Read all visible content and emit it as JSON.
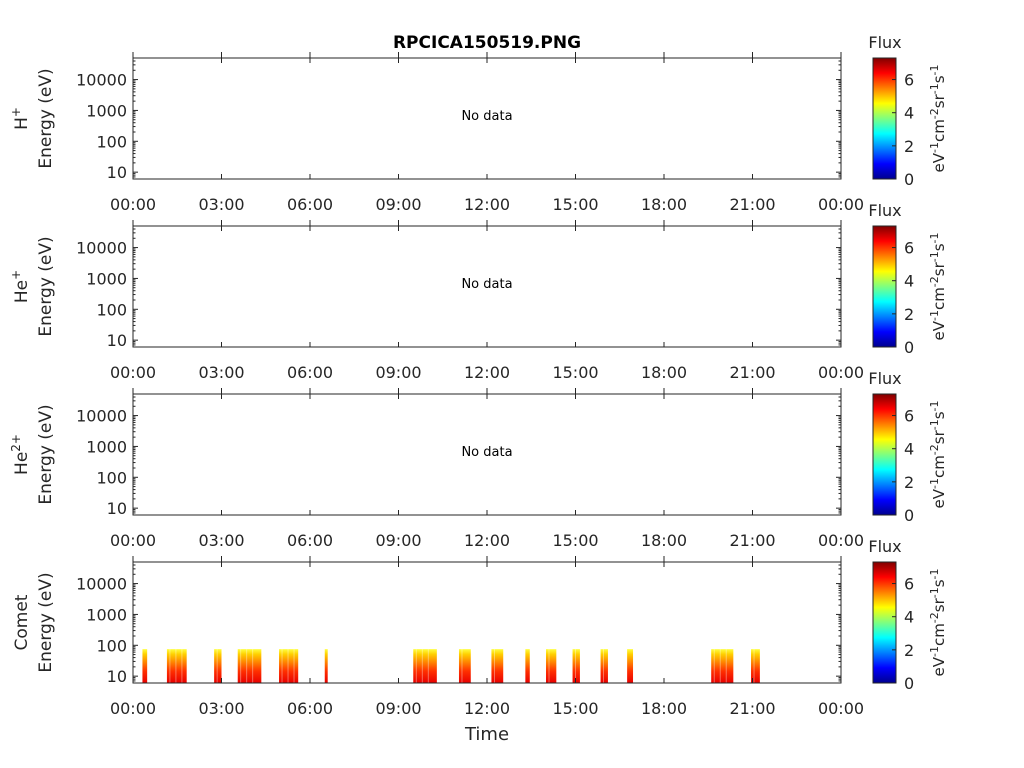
{
  "chart_data": {
    "type": "heatmap",
    "title": "RPCICA150519.PNG",
    "xlabel": "Time",
    "xticks": [
      "00:00",
      "03:00",
      "06:00",
      "09:00",
      "12:00",
      "15:00",
      "18:00",
      "21:00",
      "00:00"
    ],
    "xlim_hours": [
      0,
      24
    ],
    "yscale": "log",
    "ylim": [
      6,
      50000
    ],
    "yticks": [
      10,
      100,
      1000,
      10000
    ],
    "ytick_labels": [
      "10",
      "100",
      "1000",
      "10000"
    ],
    "colorbar": {
      "title": "Flux",
      "unit": "eV-1cm-2sr-1s-1",
      "range": [
        0,
        7.3
      ],
      "ticks": [
        0,
        2,
        4,
        6
      ],
      "tick_labels": [
        "0",
        "2",
        "4",
        "6"
      ],
      "colormap": "jet"
    },
    "panels": [
      {
        "species": "H",
        "superscript": "+",
        "ylabel": "Energy (eV)",
        "annotation": "No data",
        "bursts": []
      },
      {
        "species": "He",
        "superscript": "+",
        "ylabel": "Energy (eV)",
        "annotation": "No data",
        "bursts": []
      },
      {
        "species": "He",
        "superscript": "2+",
        "ylabel": "Energy (eV)",
        "annotation": "No data",
        "bursts": []
      },
      {
        "species": "Comet",
        "superscript": "",
        "ylabel": "Energy (eV)",
        "annotation": "",
        "bursts": [
          {
            "start": 0.32,
            "end": 0.48,
            "emax": 75
          },
          {
            "start": 1.15,
            "end": 1.82,
            "emax": 75
          },
          {
            "start": 2.75,
            "end": 3.0,
            "emax": 75
          },
          {
            "start": 3.55,
            "end": 4.35,
            "emax": 75
          },
          {
            "start": 4.95,
            "end": 5.6,
            "emax": 75
          },
          {
            "start": 6.5,
            "end": 6.6,
            "emax": 75
          },
          {
            "start": 9.5,
            "end": 10.3,
            "emax": 75
          },
          {
            "start": 11.05,
            "end": 11.45,
            "emax": 75
          },
          {
            "start": 12.15,
            "end": 12.55,
            "emax": 75
          },
          {
            "start": 13.3,
            "end": 13.45,
            "emax": 75
          },
          {
            "start": 14.0,
            "end": 14.35,
            "emax": 75
          },
          {
            "start": 14.9,
            "end": 15.15,
            "emax": 75
          },
          {
            "start": 15.85,
            "end": 16.1,
            "emax": 75
          },
          {
            "start": 16.75,
            "end": 16.95,
            "emax": 75
          },
          {
            "start": 19.6,
            "end": 20.35,
            "emax": 75
          },
          {
            "start": 20.95,
            "end": 21.25,
            "emax": 75
          }
        ]
      }
    ]
  }
}
